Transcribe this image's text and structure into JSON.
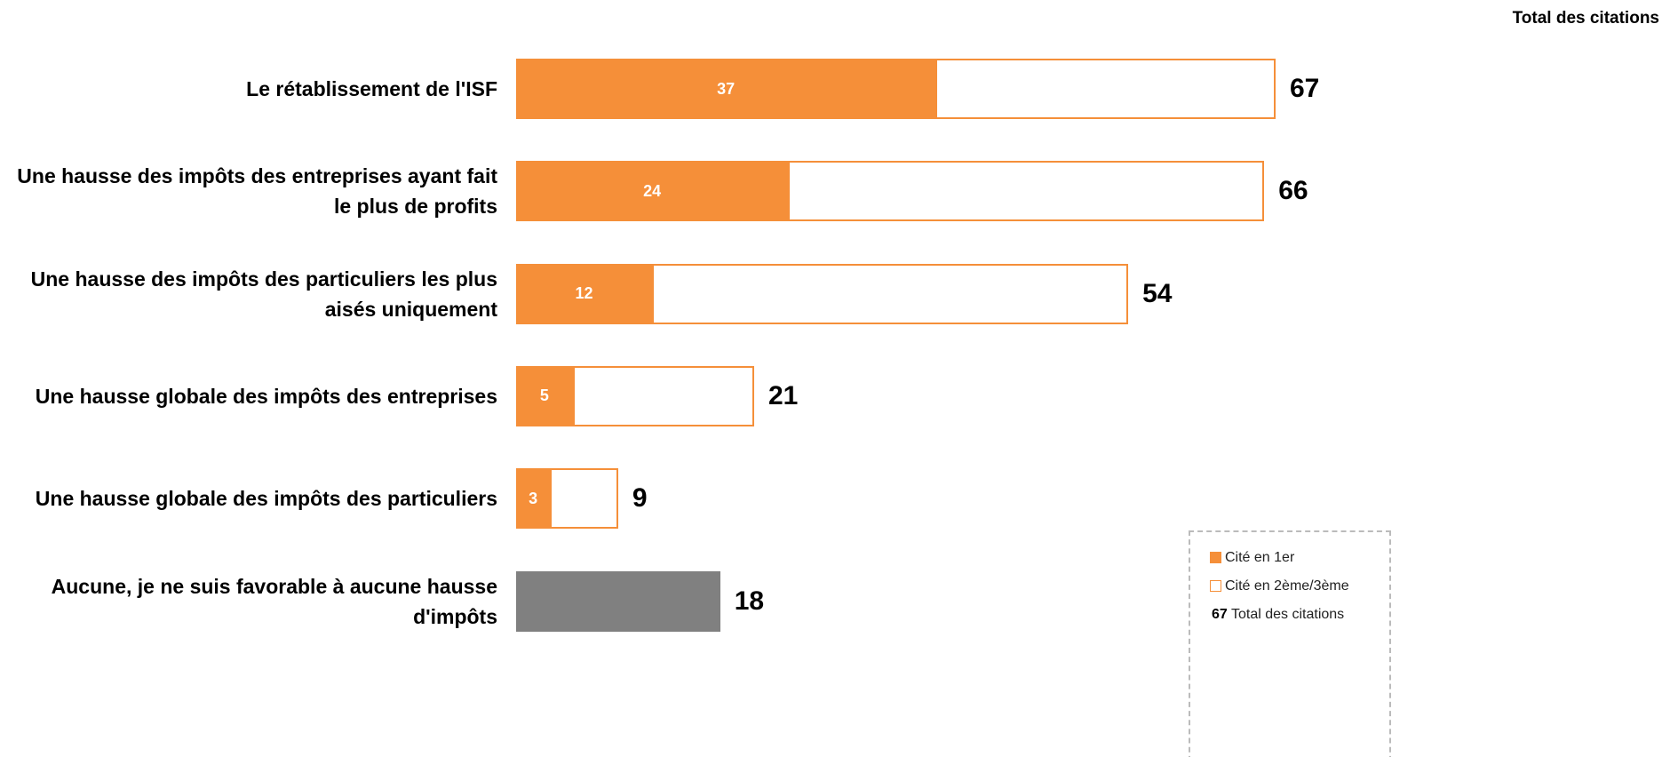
{
  "chart_data": {
    "type": "bar",
    "orientation": "horizontal",
    "stacked": true,
    "categories": [
      "Le rétablissement de l'ISF",
      "Une hausse des impôts des entreprises ayant fait le plus de profits",
      "Une hausse des impôts des particuliers les plus aisés uniquement",
      "Une hausse globale des impôts des entreprises",
      "Une hausse globale des impôts des particuliers",
      "Aucune, je ne suis favorable à aucune hausse d'impôts"
    ],
    "series": [
      {
        "name": "Cité en 1er",
        "color": "#f58f39",
        "values": [
          37,
          24,
          12,
          5,
          3,
          null
        ]
      },
      {
        "name": "Cité en 2ème/3ème",
        "color": "#ffffff",
        "values": [
          30,
          42,
          42,
          16,
          6,
          null
        ]
      }
    ],
    "totals": {
      "name": "Total des citations",
      "values": [
        67,
        66,
        54,
        21,
        9,
        18
      ]
    },
    "other_color": "#808080"
  }
}
